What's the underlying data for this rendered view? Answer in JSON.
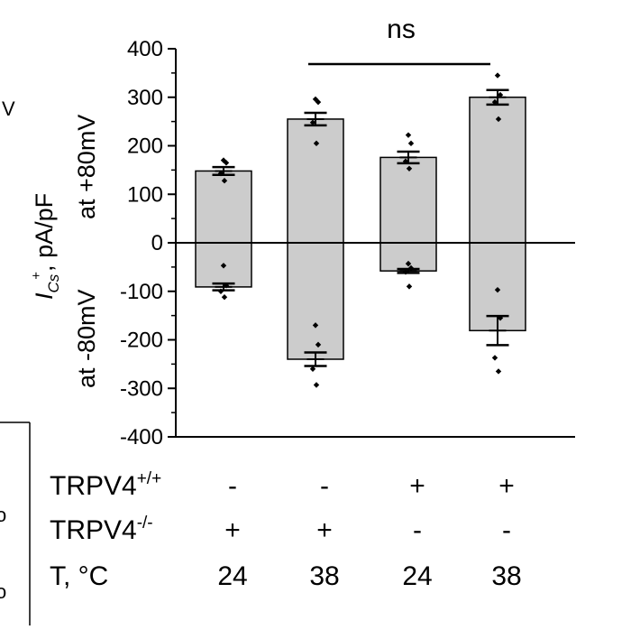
{
  "chart_data": {
    "type": "bar",
    "categories": [
      "-/+/24",
      "-/+/38",
      "+/-/24",
      "+/-/38"
    ],
    "ylim": [
      -400,
      400
    ],
    "yticks": [
      -400,
      -300,
      -200,
      -100,
      0,
      100,
      200,
      300,
      400
    ],
    "ylabel_main": "I",
    "ylabel_sub": "Cs",
    "ylabel_sup": "+",
    "ylabel_unit": ", pA/pF",
    "ylabel_pos": "at +80mV",
    "ylabel_neg": "at -80mV",
    "series": [
      {
        "name": "at +80mV",
        "values": [
          148,
          255,
          176,
          300
        ],
        "sem": [
          8,
          13,
          12,
          15
        ],
        "points": [
          [
            170,
            165,
            143,
            128
          ],
          [
            296,
            290,
            248,
            205
          ],
          [
            222,
            205,
            168,
            153
          ],
          [
            345,
            305,
            290,
            255
          ]
        ]
      },
      {
        "name": "at -80mV",
        "values": [
          -91,
          -240,
          -58,
          -181
        ],
        "sem": [
          7,
          14,
          4,
          30
        ],
        "points": [
          [
            -47,
            -88,
            -100,
            -112
          ],
          [
            -170,
            -210,
            -260,
            -293
          ],
          [
            -43,
            -52,
            -60,
            -90
          ],
          [
            -97,
            -155,
            -237,
            -265
          ]
        ]
      }
    ],
    "grid": false,
    "fill_color": "#cccccc",
    "edge_color": "#000000",
    "annotation": {
      "text": "ns",
      "from_category": 1,
      "to_category": 3
    },
    "table": {
      "rows": [
        {
          "label_main": "TRPV4",
          "label_sup": "+/+",
          "values": [
            "-",
            "-",
            "+",
            "+"
          ]
        },
        {
          "label_main": "TRPV4",
          "label_sup": "-/-",
          "values": [
            "+",
            "+",
            "-",
            "-"
          ]
        },
        {
          "label_main": "T, °C",
          "label_sup": "",
          "values": [
            "24",
            "38",
            "24",
            "38"
          ]
        }
      ]
    },
    "edge_fragments": [
      "V",
      "o",
      "o"
    ]
  }
}
